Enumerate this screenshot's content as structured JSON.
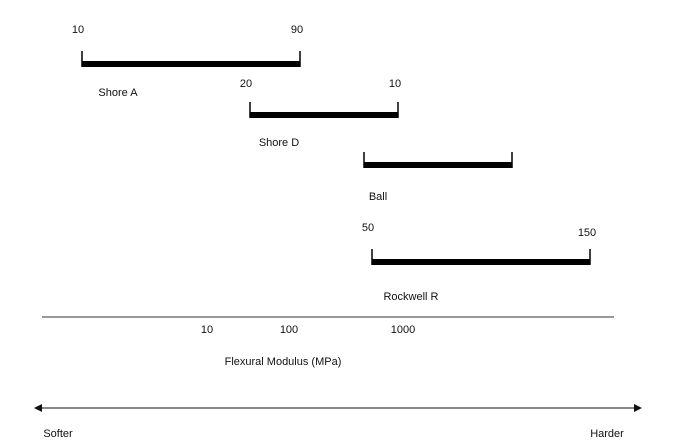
{
  "scales": [
    {
      "name": "Shore A",
      "start": "10",
      "end": "90"
    },
    {
      "name": "Shore D",
      "start": "20",
      "end": "10"
    },
    {
      "name": "Ball"
    },
    {
      "name": "Rockwell R",
      "start": "50",
      "end": "150"
    }
  ],
  "axis": {
    "ticks": [
      "10",
      "100",
      "1000"
    ],
    "title": "Flexural Modulus (MPa)"
  },
  "arrow": {
    "left": "Softer",
    "right": "Harder"
  }
}
